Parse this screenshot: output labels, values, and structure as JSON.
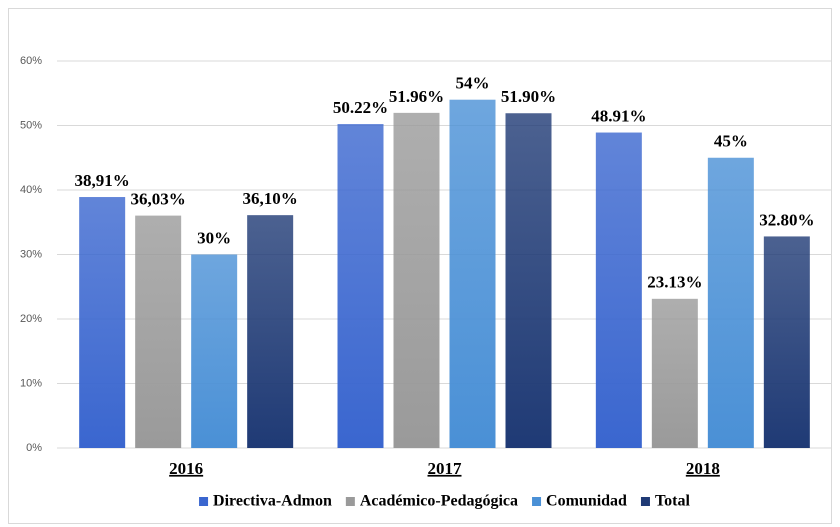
{
  "chart_data": {
    "type": "bar",
    "categories": [
      "2016",
      "2017",
      "2018"
    ],
    "series": [
      {
        "name": "Directiva-Admon",
        "color": "#3a66cf",
        "values": [
          38.91,
          50.22,
          48.91
        ],
        "value_labels": [
          "38,91%",
          "50.22%",
          "48.91%"
        ]
      },
      {
        "name": "Académico-Pedagógica",
        "color": "#9a9a9a",
        "values": [
          36.03,
          51.96,
          23.13
        ],
        "value_labels": [
          "36,03%",
          "51.96%",
          "23.13%"
        ]
      },
      {
        "name": "Comunidad",
        "color": "#4a90d6",
        "values": [
          30,
          54,
          45
        ],
        "value_labels": [
          "30%",
          "54%",
          "45%"
        ]
      },
      {
        "name": "Total",
        "color": "#1f3a75",
        "values": [
          36.1,
          51.9,
          32.8
        ],
        "value_labels": [
          "36,10%",
          "51.90%",
          "32.80%"
        ]
      }
    ],
    "ylim": [
      0,
      60
    ],
    "yticks": [
      {
        "value": 0,
        "label": "0%"
      },
      {
        "value": 10,
        "label": "10%"
      },
      {
        "value": 20,
        "label": "20%"
      },
      {
        "value": 30,
        "label": "30%"
      },
      {
        "value": 40,
        "label": "40%"
      },
      {
        "value": 50,
        "label": "50%"
      },
      {
        "value": 60,
        "label": "60%"
      }
    ],
    "grid": true,
    "legend": "bottom"
  }
}
